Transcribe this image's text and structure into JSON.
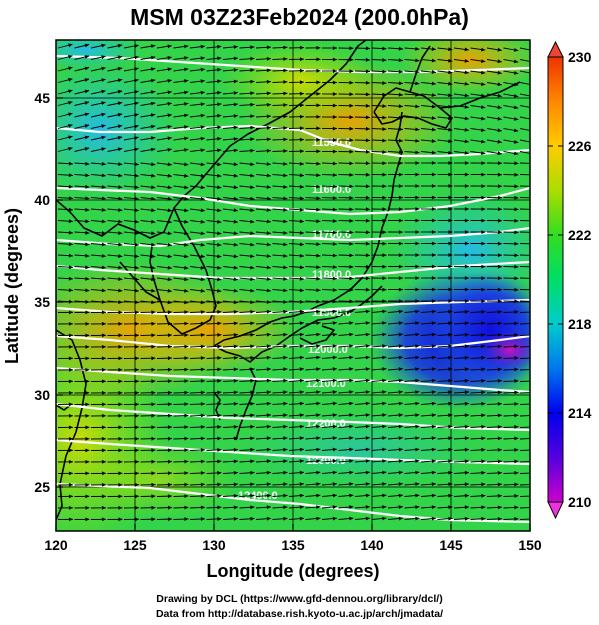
{
  "title": "MSM 03Z23Feb2024 (200.0hPa)",
  "xaxis": {
    "label": "Longitude (degrees)",
    "range": [
      120,
      150
    ],
    "ticks": [
      "120",
      "125",
      "130",
      "135",
      "140",
      "145",
      "150"
    ]
  },
  "yaxis": {
    "label": "Latitude  (degrees)",
    "range": [
      22.4,
      47.6
    ],
    "ticks": [
      "25",
      "30",
      "35",
      "40",
      "45"
    ]
  },
  "colorbar": {
    "min": 210,
    "max": 230,
    "ticks": [
      "210",
      "214",
      "218",
      "222",
      "226",
      "230"
    ]
  },
  "contours": {
    "color": "#ffffff",
    "labels": [
      "11550.0",
      "11600.0",
      "11700.0",
      "11800.0",
      "11900.0",
      "12000.0",
      "12100.0",
      "12200.0",
      "12300.0",
      "12400.0"
    ]
  },
  "credits": [
    "Drawing by DCL (https://www.gfd-dennou.org/library/dcl/)",
    "Data from http://database.rish.kyoto-u.ac.jp/arch/jmadata/"
  ]
}
